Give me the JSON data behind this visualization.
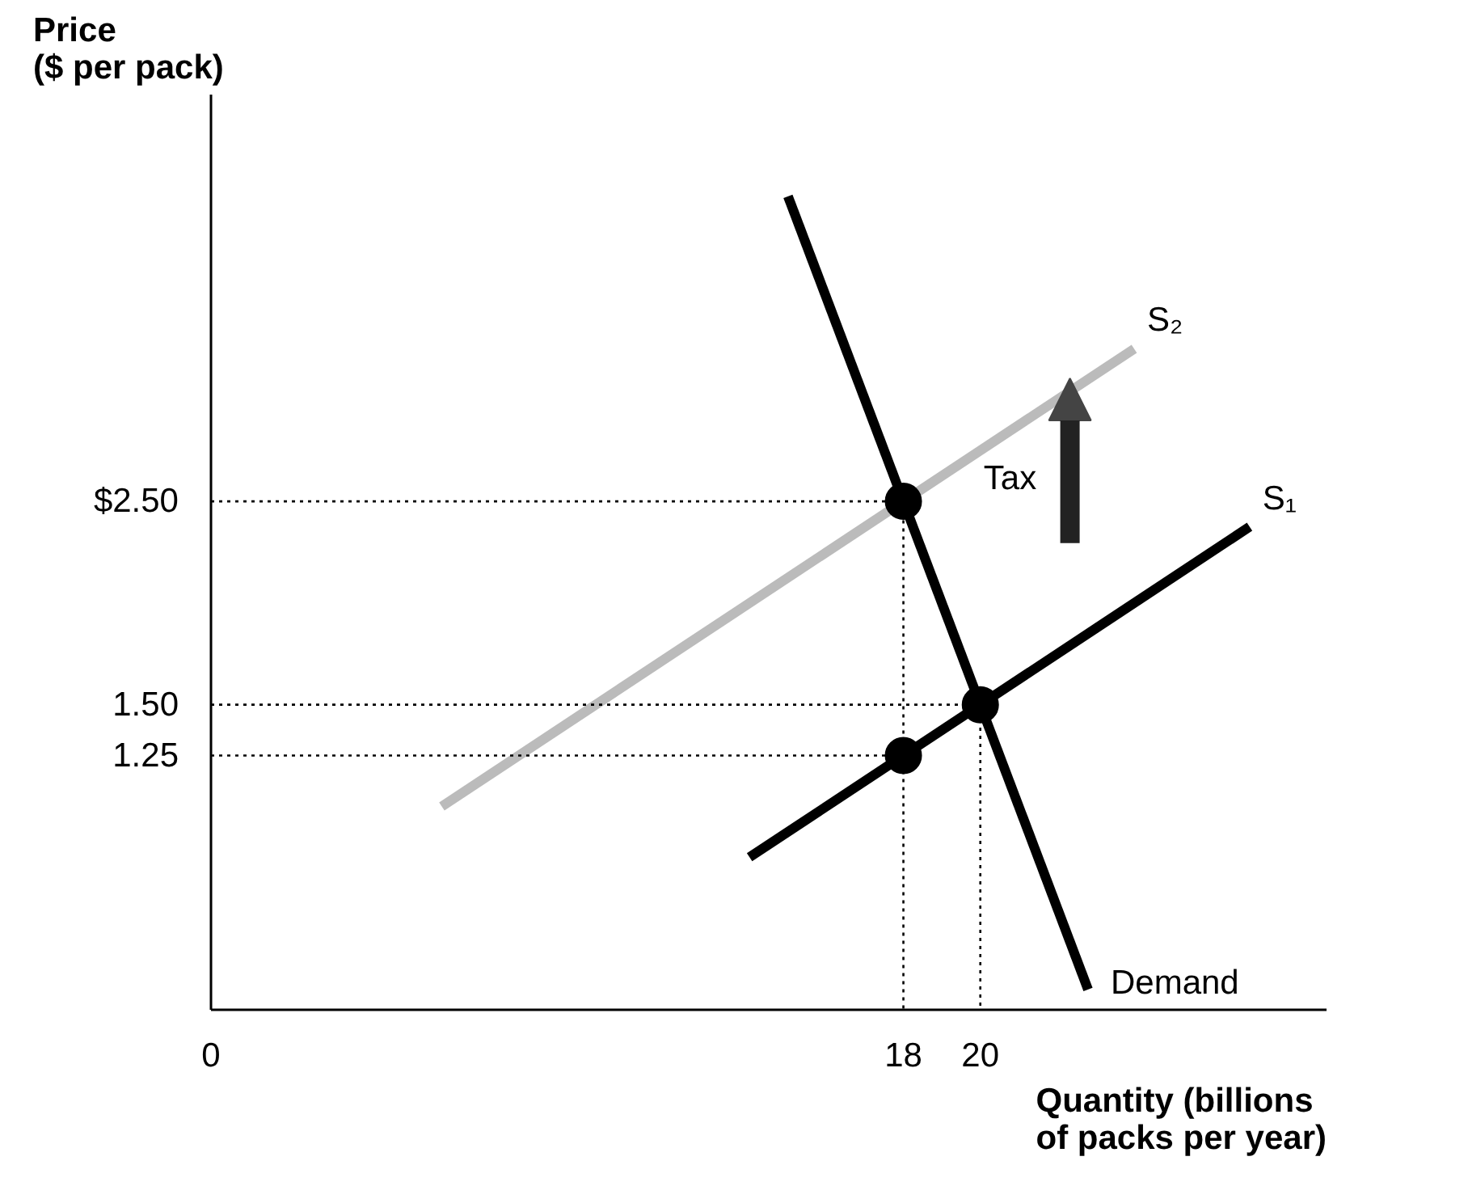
{
  "chart_data": {
    "type": "line",
    "xlabel": "Quantity (billions\nof packs per year)",
    "ylabel": "Price\n($ per pack)",
    "xlim": [
      0,
      29
    ],
    "ylim": [
      0,
      4.5
    ],
    "xticks": [
      0,
      18,
      20
    ],
    "yticks": [
      {
        "value": 1.25,
        "label": "1.25"
      },
      {
        "value": 1.5,
        "label": "1.50"
      },
      {
        "value": 2.5,
        "label": "$2.50"
      }
    ],
    "series": [
      {
        "name": "S₂",
        "color": "#bbbbbb",
        "x": [
          6,
          24
        ],
        "values": [
          1.0,
          3.25
        ]
      },
      {
        "name": "S₁",
        "color": "#000000",
        "x": [
          14,
          27
        ],
        "values": [
          0.75,
          2.375
        ]
      },
      {
        "name": "Demand",
        "color": "#000000",
        "x": [
          15,
          22.8
        ],
        "values": [
          4.0,
          0.1
        ]
      },
      {
        "color": "#000000",
        "line_style": "dotted",
        "x": [
          0,
          18,
          18
        ],
        "values": [
          2.5,
          2.5,
          0
        ]
      },
      {
        "color": "#000000",
        "line_style": "dotted",
        "x": [
          0,
          20,
          20
        ],
        "values": [
          1.5,
          1.5,
          0
        ]
      },
      {
        "color": "#000000",
        "line_style": "dotted",
        "x": [
          0,
          18
        ],
        "values": [
          1.25,
          1.25
        ]
      },
      {
        "type": "scatter",
        "marker": "circle",
        "color": "#000000",
        "x": [
          18,
          20,
          18
        ],
        "values": [
          2.5,
          1.5,
          1.25
        ]
      }
    ],
    "annotations": [
      "Tax"
    ],
    "grid": false
  }
}
